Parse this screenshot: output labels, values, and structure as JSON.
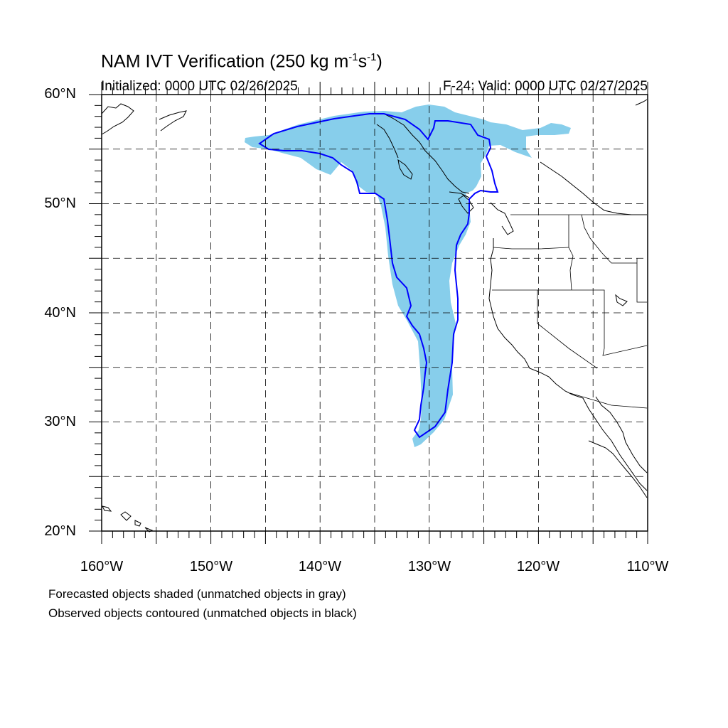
{
  "title": {
    "main": "NAM IVT Verification (250 kg m",
    "sup1": "-1",
    "mid": "s",
    "sup2": "-1",
    "end": ")"
  },
  "init_text": "Initialized: 0000 UTC 02/26/2025",
  "valid_text": "F-24: Valid: 0000 UTC 02/27/2025",
  "lat_labels": {
    "l60": "60°N",
    "l50": "50°N",
    "l40": "40°N",
    "l30": "30°N",
    "l20": "20°N"
  },
  "lon_labels": {
    "w160": "160°W",
    "w150": "150°W",
    "w140": "140°W",
    "w130": "130°W",
    "w120": "120°W",
    "w110": "110°W"
  },
  "footer": {
    "line1": "Forecasted objects shaded (unmatched objects in gray)",
    "line2": "Observed objects contoured (unmatched objects in black)"
  },
  "map": {
    "lon_range": [
      -160,
      -110
    ],
    "lat_range": [
      20,
      60
    ],
    "grid_spacing_deg": 5,
    "grid_style": "dashed",
    "forecast_fill_color": "#87ceeb",
    "observed_contour_color": "#0000ff",
    "coastline_color": "#000000"
  }
}
